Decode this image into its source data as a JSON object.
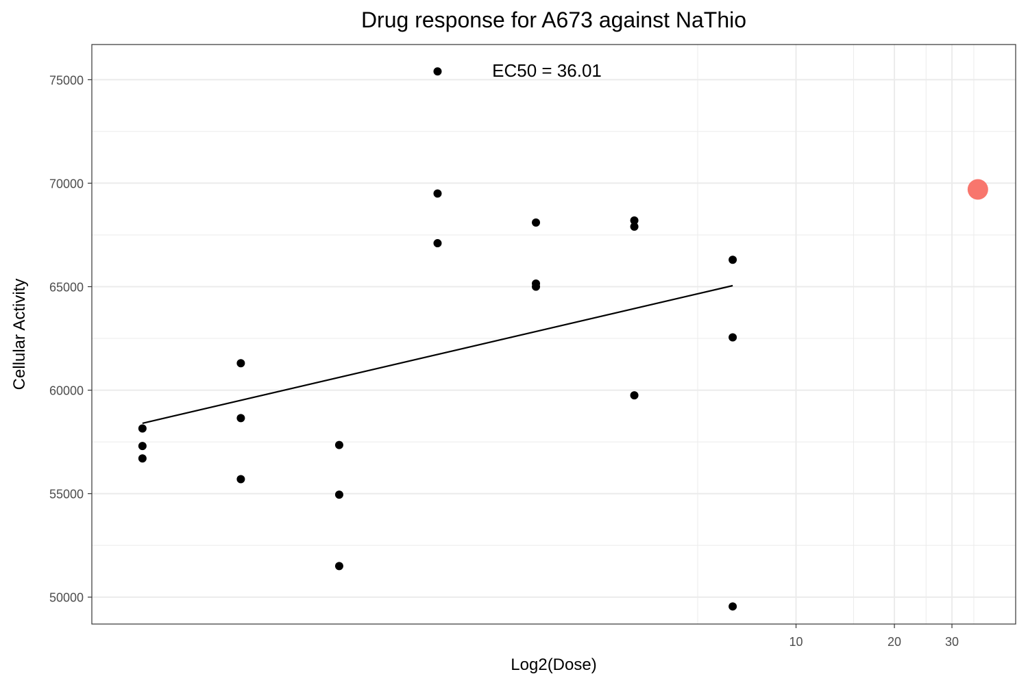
{
  "chart_data": {
    "type": "scatter",
    "title": "Drug response for A673 against NaThio",
    "xlabel": "Log2(Dose)",
    "ylabel": "Cellular Activity",
    "x_scale": "log10",
    "xlim": [
      0.07,
      47
    ],
    "ylim": [
      48700,
      76700
    ],
    "x_ticks": [
      10,
      20,
      30
    ],
    "x_tick_labels": [
      "10",
      "20",
      "30"
    ],
    "x_minor_ticks": [
      5,
      15,
      25,
      35
    ],
    "y_ticks": [
      50000,
      55000,
      60000,
      65000,
      70000,
      75000
    ],
    "y_tick_labels": [
      "50000",
      "55000",
      "60000",
      "65000",
      "70000",
      "75000"
    ],
    "grid": true,
    "legend": "none",
    "annotation": "EC50 = 36.01",
    "colors": {
      "points": "#000000",
      "ec50": "#f8766d",
      "line": "#000000",
      "grid": "#ebebeb"
    },
    "points": [
      {
        "x": 0.1,
        "y": 58150
      },
      {
        "x": 0.1,
        "y": 57300
      },
      {
        "x": 0.1,
        "y": 56700
      },
      {
        "x": 0.2,
        "y": 61300
      },
      {
        "x": 0.2,
        "y": 58650
      },
      {
        "x": 0.2,
        "y": 55700
      },
      {
        "x": 0.4,
        "y": 57350
      },
      {
        "x": 0.4,
        "y": 54950
      },
      {
        "x": 0.4,
        "y": 51500
      },
      {
        "x": 0.8,
        "y": 75400
      },
      {
        "x": 0.8,
        "y": 69500
      },
      {
        "x": 0.8,
        "y": 67100
      },
      {
        "x": 1.6,
        "y": 68100
      },
      {
        "x": 1.6,
        "y": 65150
      },
      {
        "x": 1.6,
        "y": 65000
      },
      {
        "x": 3.2,
        "y": 68200
      },
      {
        "x": 3.2,
        "y": 67900
      },
      {
        "x": 3.2,
        "y": 59750
      },
      {
        "x": 6.4,
        "y": 66300
      },
      {
        "x": 6.4,
        "y": 62550
      },
      {
        "x": 6.4,
        "y": 49550
      }
    ],
    "fit_line": [
      {
        "x": 0.1,
        "y": 58400
      },
      {
        "x": 6.4,
        "y": 65050
      }
    ],
    "ec50_point": {
      "x": 36.01,
      "y": 69700
    }
  }
}
